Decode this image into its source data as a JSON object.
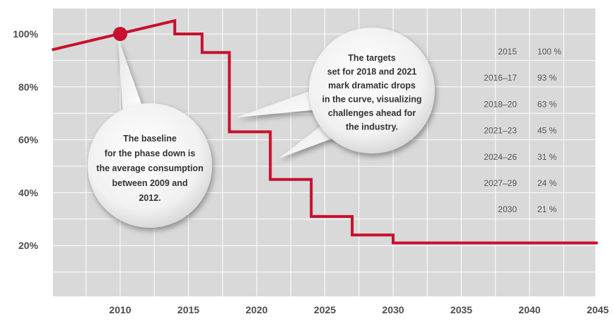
{
  "chart_data": {
    "type": "line",
    "step": true,
    "x": [
      2005,
      2014,
      2014,
      2016,
      2016,
      2018,
      2018,
      2021,
      2021,
      2024,
      2024,
      2027,
      2027,
      2030,
      2030,
      2045
    ],
    "y": [
      94,
      105,
      100,
      100,
      93,
      93,
      63,
      63,
      45,
      45,
      31,
      31,
      24,
      24,
      21,
      21
    ],
    "xlim": [
      2005,
      2045
    ],
    "ylim": [
      0,
      110
    ],
    "x_ticks": [
      "2010",
      "2015",
      "2020",
      "2025",
      "2030",
      "2035",
      "2040",
      "2045"
    ],
    "x_tick_values": [
      2010,
      2015,
      2020,
      2025,
      2030,
      2035,
      2040,
      2045
    ],
    "y_ticks": [
      "20%",
      "40%",
      "60%",
      "80%",
      "100%"
    ],
    "y_tick_values": [
      20,
      40,
      60,
      80,
      100
    ],
    "grid": true,
    "line_color": "#c8102e",
    "background_color": "#d9d9d9",
    "marker": {
      "x": 2010,
      "y": 100
    },
    "table": [
      {
        "period": "2015",
        "value": "100 %"
      },
      {
        "period": "2016–17",
        "value": "93 %"
      },
      {
        "period": "2018–20",
        "value": "63 %"
      },
      {
        "period": "2021–23",
        "value": "45 %"
      },
      {
        "period": "2024–26",
        "value": "31 %"
      },
      {
        "period": "2027–29",
        "value": "24 %"
      },
      {
        "period": "2030",
        "value": "21 %"
      }
    ],
    "annotations": [
      {
        "id": "baseline",
        "lines": [
          "The baseline",
          "for the phase down is",
          "the average consumption",
          "between 2009 and",
          "2012."
        ]
      },
      {
        "id": "targets",
        "lines": [
          "The targets",
          "set for 2018 and 2021",
          "mark dramatic drops",
          "in the curve, visualizing",
          "challenges ahead for",
          "the industry."
        ]
      }
    ]
  }
}
